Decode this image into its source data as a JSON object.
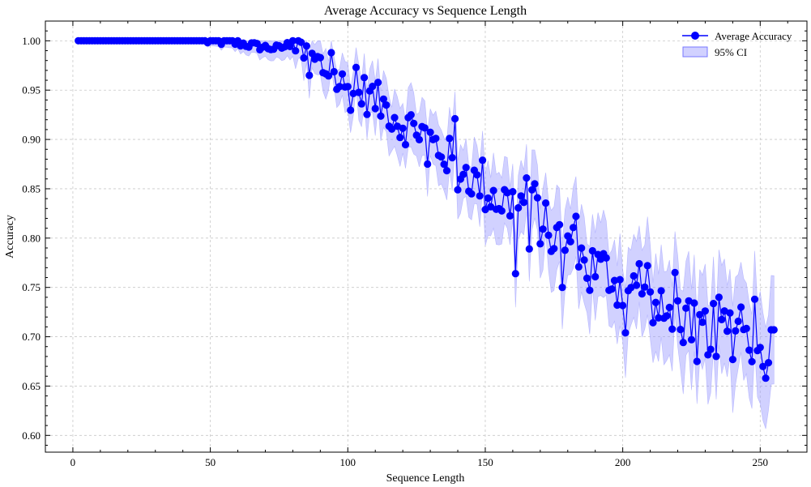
{
  "chart_data": {
    "type": "line",
    "title": "Average Accuracy vs Sequence Length",
    "xlabel": "Sequence Length",
    "ylabel": "Accuracy",
    "xlim": [
      -10,
      267
    ],
    "ylim": [
      0.583,
      1.02
    ],
    "xticks": [
      0,
      50,
      100,
      150,
      200,
      250
    ],
    "yticks": [
      0.6,
      0.65,
      0.7,
      0.75,
      0.8,
      0.85,
      0.9,
      0.95,
      1.0
    ],
    "xtick_labels": [
      "0",
      "50",
      "100",
      "150",
      "200",
      "250"
    ],
    "ytick_labels": [
      "0.60",
      "0.65",
      "0.70",
      "0.75",
      "0.80",
      "0.85",
      "0.90",
      "0.95",
      "1.00"
    ],
    "grid": true,
    "legend_position": "top-right",
    "colors": {
      "line": "#0000ff",
      "band": "#9999ff"
    },
    "series": [
      {
        "name": "Average Accuracy",
        "kind": "line-markers"
      },
      {
        "name": "95% CI",
        "kind": "band"
      }
    ],
    "x_range": [
      2,
      255
    ],
    "keypoints": [
      [
        2,
        1.0
      ],
      [
        47,
        1.0
      ],
      [
        55,
        0.999
      ],
      [
        62,
        0.997
      ],
      [
        68,
        0.994
      ],
      [
        75,
        0.992
      ],
      [
        80,
        0.998
      ],
      [
        85,
        0.982
      ],
      [
        90,
        0.975
      ],
      [
        95,
        0.962
      ],
      [
        100,
        0.949
      ],
      [
        105,
        0.948
      ],
      [
        110,
        0.94
      ],
      [
        115,
        0.93
      ],
      [
        120,
        0.915
      ],
      [
        125,
        0.912
      ],
      [
        130,
        0.9
      ],
      [
        135,
        0.885
      ],
      [
        140,
        0.878
      ],
      [
        145,
        0.86
      ],
      [
        150,
        0.85
      ],
      [
        155,
        0.84
      ],
      [
        160,
        0.833
      ],
      [
        165,
        0.832
      ],
      [
        170,
        0.818
      ],
      [
        175,
        0.8
      ],
      [
        180,
        0.797
      ],
      [
        185,
        0.778
      ],
      [
        190,
        0.77
      ],
      [
        195,
        0.765
      ],
      [
        200,
        0.748
      ],
      [
        205,
        0.745
      ],
      [
        210,
        0.73
      ],
      [
        215,
        0.72
      ],
      [
        220,
        0.718
      ],
      [
        225,
        0.71
      ],
      [
        230,
        0.705
      ],
      [
        235,
        0.71
      ],
      [
        240,
        0.713
      ],
      [
        245,
        0.7
      ],
      [
        250,
        0.69
      ],
      [
        255,
        0.705
      ]
    ],
    "specific_points": [
      [
        80,
        1.0
      ],
      [
        86,
        0.965
      ],
      [
        94,
        0.988
      ],
      [
        103,
        0.973
      ],
      [
        119,
        0.902
      ],
      [
        129,
        0.875
      ],
      [
        139,
        0.921
      ],
      [
        140,
        0.849
      ],
      [
        149,
        0.879
      ],
      [
        161,
        0.764
      ],
      [
        165,
        0.861
      ],
      [
        166,
        0.789
      ],
      [
        168,
        0.855
      ],
      [
        178,
        0.75
      ],
      [
        183,
        0.822
      ],
      [
        188,
        0.747
      ],
      [
        201,
        0.704
      ],
      [
        206,
        0.774
      ],
      [
        209,
        0.772
      ],
      [
        219,
        0.765
      ],
      [
        225,
        0.697
      ],
      [
        227,
        0.675
      ],
      [
        234,
        0.68
      ],
      [
        235,
        0.74
      ],
      [
        240,
        0.677
      ],
      [
        243,
        0.73
      ],
      [
        248,
        0.738
      ],
      [
        249,
        0.686
      ],
      [
        252,
        0.658
      ],
      [
        254,
        0.707
      ],
      [
        255,
        0.707
      ]
    ]
  }
}
